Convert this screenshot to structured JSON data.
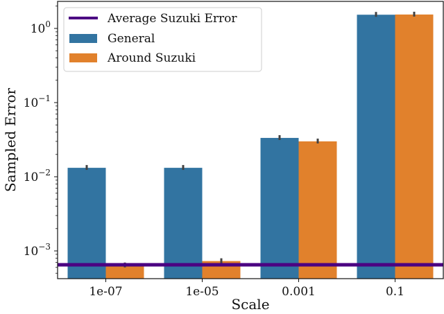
{
  "chart_data": {
    "type": "bar",
    "title": "",
    "xlabel": "Scale",
    "ylabel": "Sampled Error",
    "yscale": "log",
    "ylim": [
      0.00042,
      2.2
    ],
    "yticks": [
      {
        "value": 1,
        "base": "10",
        "exp": "0"
      },
      {
        "value": 0.1,
        "base": "10",
        "exp": "−1"
      },
      {
        "value": 0.01,
        "base": "10",
        "exp": "−2"
      },
      {
        "value": 0.001,
        "base": "10",
        "exp": "−3"
      }
    ],
    "categories": [
      "1e-07",
      "1e-05",
      "0.001",
      "0.1"
    ],
    "series": [
      {
        "name": "General",
        "color": "#3274a1",
        "values": [
          0.0132,
          0.0132,
          0.0334,
          1.53
        ]
      },
      {
        "name": "Around Suzuki",
        "color": "#e1812c",
        "values": [
          0.00064,
          0.00073,
          0.03,
          1.54
        ]
      }
    ],
    "hline": {
      "name": "Average Suzuki Error",
      "value": 0.00065,
      "color": "#4b0082"
    },
    "grid": false,
    "legend_position": "upper left",
    "error_bar_color": "#424242"
  }
}
